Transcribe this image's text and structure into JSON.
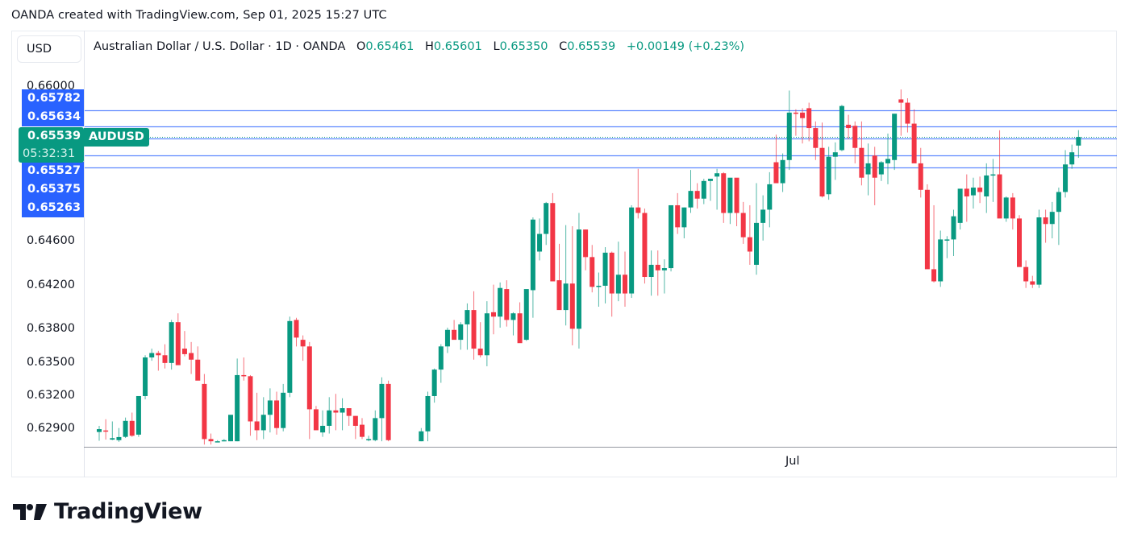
{
  "attribution": "OANDA created with TradingView.com, Sep 01, 2025 15:27 UTC",
  "currency": "USD",
  "legend": {
    "title": "Australian Dollar / U.S. Dollar · 1D · OANDA",
    "open_label": "O",
    "open": "0.65461",
    "high_label": "H",
    "high": "0.65601",
    "low_label": "L",
    "low": "0.65350",
    "close_label": "C",
    "close": "0.65539",
    "change": "+0.00149 (+0.23%)"
  },
  "symbol_tag": "AUDUSD",
  "current_price": "0.65539",
  "countdown": "05:32:31",
  "brand": "TradingView",
  "colors": {
    "up": "#089981",
    "down": "#f23645",
    "line": "#2962ff",
    "text": "#131722"
  },
  "chart_data": {
    "type": "candlestick",
    "title": "Australian Dollar / U.S. Dollar · 1D · OANDA",
    "xlabel": "",
    "ylabel": "USD",
    "x_ticks": [
      {
        "label": "Jul",
        "x": 985
      }
    ],
    "y_ticks": [
      "0.66000",
      "0.64600",
      "0.64200",
      "0.63800",
      "0.63500",
      "0.63200",
      "0.62900"
    ],
    "ylim": [
      0.628,
      0.662
    ],
    "grid": false,
    "horizontal_lines": [
      {
        "label": "0.65782",
        "value": 0.65782
      },
      {
        "label": "0.65634",
        "value": 0.65634
      },
      {
        "label": "0.65527",
        "value": 0.65527
      },
      {
        "label": "0.65375",
        "value": 0.65375
      },
      {
        "label": "0.65263",
        "value": 0.65263
      }
    ],
    "price_tags_above": [
      "0.65782",
      "0.65634"
    ],
    "price_tags_below": [
      "0.65527",
      "0.65375",
      "0.65263"
    ],
    "current": {
      "value": 0.65539,
      "label": "0.65539"
    },
    "candles": [
      [
        0.62864,
        0.6292,
        0.62785,
        0.6289
      ],
      [
        0.62878,
        0.6298,
        0.62795,
        0.6287
      ],
      [
        0.62795,
        0.6296,
        0.6279,
        0.62808
      ],
      [
        0.6279,
        0.629,
        0.62775,
        0.62818
      ],
      [
        0.6282,
        0.62995,
        0.6281,
        0.62965
      ],
      [
        0.62965,
        0.6304,
        0.6282,
        0.6283
      ],
      [
        0.6284,
        0.6313,
        0.6282,
        0.6319
      ],
      [
        0.6319,
        0.6356,
        0.6316,
        0.6354
      ],
      [
        0.6354,
        0.6362,
        0.6351,
        0.6358
      ],
      [
        0.6358,
        0.636,
        0.6342,
        0.6356
      ],
      [
        0.6356,
        0.6366,
        0.6344,
        0.6349
      ],
      [
        0.6349,
        0.6388,
        0.6343,
        0.6386
      ],
      [
        0.6386,
        0.6394,
        0.635,
        0.6347
      ],
      [
        0.6362,
        0.6378,
        0.6355,
        0.6357
      ],
      [
        0.6358,
        0.6368,
        0.6339,
        0.6352
      ],
      [
        0.6352,
        0.6364,
        0.6339,
        0.6333
      ],
      [
        0.633,
        0.6339,
        0.6275,
        0.628
      ],
      [
        0.628,
        0.6285,
        0.6275,
        0.6278
      ],
      [
        0.6278,
        0.6279,
        0.6278,
        0.6278
      ],
      [
        0.6278,
        0.628,
        0.6278,
        0.6279
      ],
      [
        0.6278,
        0.63,
        0.6278,
        0.6302
      ],
      [
        0.6278,
        0.6353,
        0.6278,
        0.6338
      ],
      [
        0.6338,
        0.6354,
        0.6333,
        0.6337
      ],
      [
        0.6337,
        0.6338,
        0.6283,
        0.6296
      ],
      [
        0.6296,
        0.6322,
        0.6279,
        0.6288
      ],
      [
        0.6288,
        0.6318,
        0.628,
        0.6302
      ],
      [
        0.6302,
        0.6326,
        0.6286,
        0.6315
      ],
      [
        0.6315,
        0.6323,
        0.6284,
        0.629
      ],
      [
        0.629,
        0.633,
        0.6287,
        0.6322
      ],
      [
        0.6322,
        0.6391,
        0.6318,
        0.6387
      ],
      [
        0.6388,
        0.639,
        0.6364,
        0.6372
      ],
      [
        0.637,
        0.6374,
        0.6351,
        0.6364
      ],
      [
        0.6364,
        0.6368,
        0.628,
        0.6307
      ],
      [
        0.6307,
        0.631,
        0.6288,
        0.6288
      ],
      [
        0.6286,
        0.6306,
        0.6282,
        0.6292
      ],
      [
        0.6292,
        0.6318,
        0.6285,
        0.6306
      ],
      [
        0.6306,
        0.6321,
        0.6288,
        0.6304
      ],
      [
        0.6304,
        0.6317,
        0.6288,
        0.6308
      ],
      [
        0.6308,
        0.6306,
        0.6292,
        0.6301
      ],
      [
        0.6301,
        0.6301,
        0.628,
        0.6292
      ],
      [
        0.6293,
        0.6299,
        0.628,
        0.6282
      ],
      [
        0.6279,
        0.6283,
        0.6278,
        0.628
      ],
      [
        0.6279,
        0.6306,
        0.6278,
        0.6299
      ],
      [
        0.6299,
        0.6336,
        0.6278,
        0.633
      ],
      [
        0.633,
        0.6333,
        0.6278,
        0.6279
      ],
      null,
      null,
      null,
      null,
      [
        0.6278,
        0.629,
        0.6278,
        0.6287
      ],
      [
        0.6287,
        0.6323,
        0.6278,
        0.6319
      ],
      [
        0.6319,
        0.6344,
        0.6313,
        0.6343
      ],
      [
        0.6343,
        0.6366,
        0.6331,
        0.6364
      ],
      [
        0.6364,
        0.6381,
        0.6358,
        0.6379
      ],
      [
        0.6379,
        0.6388,
        0.6372,
        0.637
      ],
      [
        0.637,
        0.6386,
        0.6361,
        0.6384
      ],
      [
        0.6384,
        0.6403,
        0.6361,
        0.6397
      ],
      [
        0.6397,
        0.6414,
        0.6352,
        0.6362
      ],
      [
        0.6362,
        0.6386,
        0.6354,
        0.6356
      ],
      [
        0.6356,
        0.6405,
        0.6346,
        0.6394
      ],
      [
        0.6395,
        0.642,
        0.6375,
        0.6391
      ],
      [
        0.6391,
        0.6422,
        0.6381,
        0.6417
      ],
      [
        0.6416,
        0.6424,
        0.6382,
        0.6388
      ],
      [
        0.6388,
        0.6395,
        0.6374,
        0.6394
      ],
      [
        0.6394,
        0.6404,
        0.6369,
        0.6367
      ],
      [
        0.637,
        0.6394,
        0.6369,
        0.6416
      ],
      [
        0.6415,
        0.6481,
        0.639,
        0.6479
      ],
      [
        0.645,
        0.648,
        0.6442,
        0.6466
      ],
      [
        0.6466,
        0.6495,
        0.6456,
        0.6494
      ],
      [
        0.6494,
        0.6503,
        0.6484,
        0.6423
      ],
      [
        0.6424,
        0.6457,
        0.6416,
        0.6397
      ],
      [
        0.6397,
        0.6474,
        0.6383,
        0.6421
      ],
      [
        0.6421,
        0.6473,
        0.6365,
        0.638
      ],
      [
        0.638,
        0.6485,
        0.6362,
        0.647
      ],
      [
        0.647,
        0.647,
        0.6433,
        0.6445
      ],
      [
        0.6445,
        0.6456,
        0.6413,
        0.6418
      ],
      [
        0.6418,
        0.6431,
        0.64,
        0.6419
      ],
      [
        0.6419,
        0.6454,
        0.6403,
        0.6449
      ],
      [
        0.6449,
        0.645,
        0.6391,
        0.6412
      ],
      [
        0.6412,
        0.6459,
        0.6405,
        0.6429
      ],
      [
        0.6429,
        0.645,
        0.64,
        0.6412
      ],
      [
        0.6412,
        0.6492,
        0.6408,
        0.649
      ],
      [
        0.649,
        0.6525,
        0.648,
        0.6485
      ],
      [
        0.6485,
        0.6489,
        0.6421,
        0.6427
      ],
      [
        0.6427,
        0.6451,
        0.641,
        0.6438
      ],
      [
        0.6438,
        0.6451,
        0.641,
        0.6433
      ],
      [
        0.6433,
        0.6443,
        0.6412,
        0.6435
      ],
      [
        0.6435,
        0.649,
        0.6432,
        0.6492
      ],
      [
        0.6492,
        0.6503,
        0.6466,
        0.6472
      ],
      [
        0.6472,
        0.649,
        0.6462,
        0.649
      ],
      [
        0.649,
        0.6524,
        0.6485,
        0.6505
      ],
      [
        0.6505,
        0.6512,
        0.6489,
        0.6498
      ],
      [
        0.6498,
        0.6516,
        0.6493,
        0.6514
      ],
      [
        0.6514,
        0.6516,
        0.6496,
        0.6516
      ],
      [
        0.6518,
        0.6525,
        0.6488,
        0.6521
      ],
      [
        0.6521,
        0.6522,
        0.6476,
        0.6485
      ],
      [
        0.6485,
        0.6516,
        0.6475,
        0.6517
      ],
      [
        0.6517,
        0.6515,
        0.6473,
        0.6485
      ],
      [
        0.6485,
        0.6495,
        0.6457,
        0.6463
      ],
      [
        0.6463,
        0.6492,
        0.6438,
        0.645
      ],
      [
        0.6438,
        0.6512,
        0.6429,
        0.6476
      ],
      [
        0.6476,
        0.6501,
        0.646,
        0.6488
      ],
      [
        0.6488,
        0.6522,
        0.6472,
        0.6511
      ],
      [
        0.6531,
        0.6556,
        0.6517,
        0.6512
      ],
      [
        0.6512,
        0.6539,
        0.6504,
        0.6533
      ],
      [
        0.6533,
        0.6596,
        0.6524,
        0.6576
      ],
      [
        0.6576,
        0.6579,
        0.6555,
        0.6575
      ],
      [
        0.6576,
        0.658,
        0.6548,
        0.6571
      ],
      [
        0.658,
        0.6585,
        0.655,
        0.6562
      ],
      [
        0.6562,
        0.6568,
        0.6533,
        0.6544
      ],
      [
        0.6544,
        0.6567,
        0.6499,
        0.65
      ],
      [
        0.6502,
        0.6545,
        0.6497,
        0.6536
      ],
      [
        0.6536,
        0.6549,
        0.6515,
        0.654
      ],
      [
        0.6542,
        0.6583,
        0.6541,
        0.6582
      ],
      [
        0.6565,
        0.6574,
        0.6552,
        0.6562
      ],
      [
        0.6564,
        0.6568,
        0.653,
        0.6544
      ],
      [
        0.6544,
        0.6568,
        0.651,
        0.6517
      ],
      [
        0.652,
        0.6548,
        0.6501,
        0.653
      ],
      [
        0.6537,
        0.6545,
        0.6492,
        0.6517
      ],
      [
        0.652,
        0.6532,
        0.6514,
        0.6531
      ],
      [
        0.653,
        0.6557,
        0.6511,
        0.6534
      ],
      [
        0.6533,
        0.6569,
        0.6524,
        0.6575
      ],
      [
        0.6588,
        0.6597,
        0.6555,
        0.6585
      ],
      [
        0.6585,
        0.6589,
        0.6558,
        0.6566
      ],
      [
        0.6566,
        0.6579,
        0.6534,
        0.653
      ],
      [
        0.653,
        0.6544,
        0.6499,
        0.6506
      ],
      [
        0.6506,
        0.6511,
        0.6497,
        0.6434
      ],
      [
        0.6434,
        0.6492,
        0.6422,
        0.6423
      ],
      [
        0.6423,
        0.6469,
        0.6418,
        0.6461
      ],
      [
        0.646,
        0.6464,
        0.6444,
        0.6461
      ],
      [
        0.6461,
        0.6488,
        0.6446,
        0.6482
      ],
      [
        0.6476,
        0.6503,
        0.647,
        0.6507
      ],
      [
        0.6507,
        0.652,
        0.6477,
        0.65
      ],
      [
        0.6501,
        0.6517,
        0.6489,
        0.6508
      ],
      [
        0.6508,
        0.6518,
        0.6494,
        0.6504
      ],
      [
        0.65,
        0.653,
        0.6485,
        0.6519
      ],
      [
        0.6519,
        0.6534,
        0.6495,
        0.652
      ],
      [
        0.652,
        0.656,
        0.6495,
        0.648
      ],
      [
        0.648,
        0.65,
        0.6477,
        0.6499
      ],
      [
        0.6499,
        0.6503,
        0.647,
        0.648
      ],
      [
        0.648,
        0.6483,
        0.6436,
        0.6436
      ],
      [
        0.6436,
        0.6442,
        0.6417,
        0.6423
      ],
      [
        0.6423,
        0.6428,
        0.6417,
        0.642
      ],
      [
        0.642,
        0.6488,
        0.6417,
        0.6481
      ],
      [
        0.6481,
        0.6488,
        0.6458,
        0.6475
      ],
      [
        0.6475,
        0.6495,
        0.6462,
        0.6486
      ],
      [
        0.6486,
        0.6508,
        0.6456,
        0.6504
      ],
      [
        0.6504,
        0.6542,
        0.6499,
        0.6529
      ],
      [
        0.6529,
        0.6547,
        0.6525,
        0.654
      ],
      [
        0.65461,
        0.65601,
        0.6535,
        0.65539
      ]
    ]
  }
}
